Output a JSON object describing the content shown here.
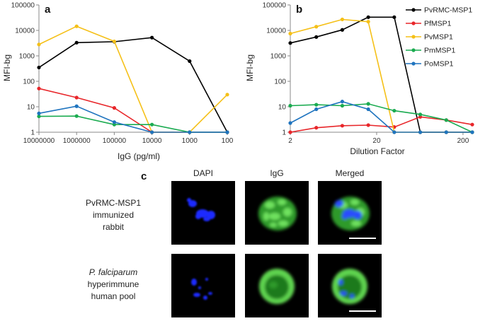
{
  "chart_data": [
    {
      "panel": "a",
      "type": "line",
      "xlabel": "IgG (pg/ml)",
      "ylabel": "MFI-bg",
      "x_scale": "log",
      "x_reversed": true,
      "y_scale": "log",
      "xlim": [
        10000000,
        100
      ],
      "ylim": [
        1,
        100000
      ],
      "x_ticks": [
        "10000000",
        "1000000",
        "100000",
        "10000",
        "1000",
        "100"
      ],
      "y_ticks": [
        "1",
        "10",
        "100",
        "1000",
        "10000",
        "100000"
      ],
      "series": [
        {
          "name": "PvRMC-MSP1",
          "color": "#000000",
          "points": [
            [
              10000000,
              350
            ],
            [
              1000000,
              3300
            ],
            [
              100000,
              3600
            ],
            [
              10000,
              5200
            ],
            [
              1000,
              620
            ],
            [
              100,
              1
            ]
          ]
        },
        {
          "name": "PfMSP1",
          "color": "#e8262a",
          "points": [
            [
              10000000,
              52
            ],
            [
              1000000,
              23
            ],
            [
              100000,
              9
            ],
            [
              10000,
              1
            ],
            [
              1000,
              1
            ],
            [
              100,
              1
            ]
          ]
        },
        {
          "name": "PvMSP1",
          "color": "#f5c018",
          "points": [
            [
              10000000,
              2800
            ],
            [
              1000000,
              14500
            ],
            [
              100000,
              3700
            ],
            [
              10000,
              1
            ],
            [
              1000,
              1
            ],
            [
              100,
              30
            ]
          ]
        },
        {
          "name": "PmMSP1",
          "color": "#1aab50",
          "points": [
            [
              10000000,
              4.2
            ],
            [
              1000000,
              4.3
            ],
            [
              100000,
              2
            ],
            [
              10000,
              2
            ],
            [
              1000,
              1
            ],
            [
              100,
              1
            ]
          ]
        },
        {
          "name": "PoMSP1",
          "color": "#1f74bf",
          "points": [
            [
              10000000,
              5.5
            ],
            [
              1000000,
              10.5
            ],
            [
              100000,
              2.5
            ],
            [
              10000,
              1
            ],
            [
              1000,
              1
            ],
            [
              100,
              1
            ]
          ]
        }
      ]
    },
    {
      "panel": "b",
      "type": "line",
      "xlabel": "Dilution Factor",
      "ylabel": "MFI-bg",
      "x_scale": "log",
      "y_scale": "log",
      "xlim": [
        2,
        256
      ],
      "ylim": [
        1,
        100000
      ],
      "x_ticks": [
        "2",
        "20",
        "200"
      ],
      "y_ticks": [
        "1",
        "10",
        "100",
        "1000",
        "10000",
        "100000"
      ],
      "legend": "top-right",
      "series": [
        {
          "name": "PvRMC-MSP1",
          "color": "#000000",
          "points": [
            [
              2,
              3200
            ],
            [
              4,
              5500
            ],
            [
              8,
              10500
            ],
            [
              16,
              33000
            ],
            [
              32,
              33000
            ],
            [
              64,
              1
            ],
            [
              128,
              1
            ],
            [
              256,
              1
            ]
          ]
        },
        {
          "name": "PfMSP1",
          "color": "#e8262a",
          "points": [
            [
              2,
              1
            ],
            [
              4,
              1.5
            ],
            [
              8,
              1.8
            ],
            [
              16,
              1.9
            ],
            [
              32,
              1.6
            ],
            [
              64,
              4
            ],
            [
              128,
              3
            ],
            [
              256,
              2
            ]
          ]
        },
        {
          "name": "PvMSP1",
          "color": "#f5c018",
          "points": [
            [
              2,
              7500
            ],
            [
              4,
              14000
            ],
            [
              8,
              27000
            ],
            [
              16,
              22000
            ],
            [
              32,
              1
            ],
            [
              64,
              1
            ],
            [
              128,
              1
            ],
            [
              256,
              1
            ]
          ]
        },
        {
          "name": "PmMSP1",
          "color": "#1aab50",
          "points": [
            [
              2,
              11
            ],
            [
              4,
              12
            ],
            [
              8,
              11
            ],
            [
              16,
              13
            ],
            [
              32,
              7
            ],
            [
              64,
              5
            ],
            [
              128,
              3
            ],
            [
              256,
              1
            ]
          ]
        },
        {
          "name": "PoMSP1",
          "color": "#1f74bf",
          "points": [
            [
              2,
              2.3
            ],
            [
              4,
              8
            ],
            [
              8,
              16
            ],
            [
              16,
              8
            ],
            [
              32,
              1
            ],
            [
              64,
              1
            ],
            [
              128,
              1
            ],
            [
              256,
              1
            ]
          ]
        }
      ]
    }
  ],
  "panel_c": {
    "letter": "c",
    "columns": [
      "DAPI",
      "IgG",
      "Merged"
    ],
    "rows": [
      {
        "label_line1": "PvRMC-MSP1",
        "label_line2": "immunized",
        "label_line3": "rabbit"
      },
      {
        "label_line1_italic": "P. falciparum",
        "label_line2": "hyperimmune",
        "label_line3": "human pool"
      }
    ],
    "colors": {
      "dapi": "#1a2cff",
      "igg": "#3fc43a",
      "background": "#000000"
    }
  }
}
